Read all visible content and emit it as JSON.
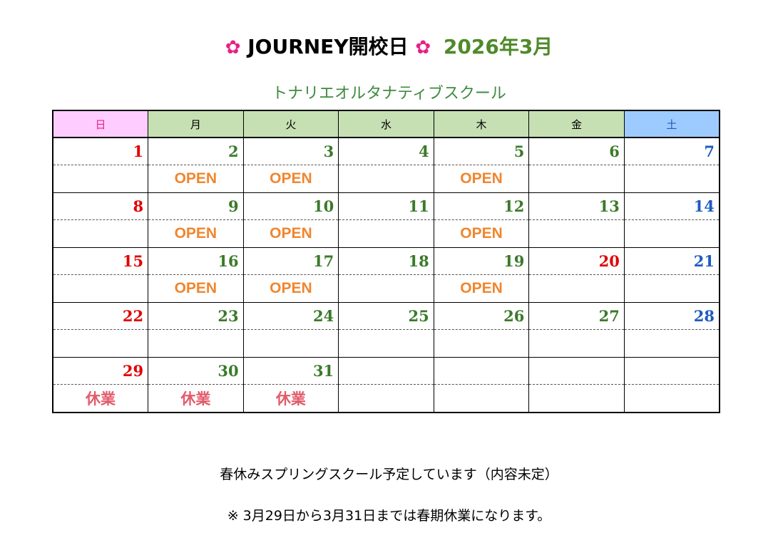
{
  "header": {
    "flower": "✿",
    "name": "JOURNEY開校日",
    "month": "2026年3月"
  },
  "subtitle": "トナリエオルタナティブスクール",
  "weekdays": [
    "日",
    "月",
    "火",
    "水",
    "木",
    "金",
    "土"
  ],
  "colors": {
    "sunday": "#e00000",
    "weekday": "#3b7a2a",
    "saturday": "#1f5bbf",
    "open": "#f0862e",
    "closed": "#e25b6a",
    "flower": "#e8208a"
  },
  "weeks": [
    {
      "days": [
        {
          "n": "1",
          "c": "red"
        },
        {
          "n": "2",
          "c": "green"
        },
        {
          "n": "3",
          "c": "green"
        },
        {
          "n": "4",
          "c": "green"
        },
        {
          "n": "5",
          "c": "green"
        },
        {
          "n": "6",
          "c": "green"
        },
        {
          "n": "7",
          "c": "blue"
        }
      ],
      "events": [
        "",
        "OPEN",
        "OPEN",
        "",
        "OPEN",
        "",
        ""
      ]
    },
    {
      "days": [
        {
          "n": "8",
          "c": "red"
        },
        {
          "n": "9",
          "c": "green"
        },
        {
          "n": "10",
          "c": "green"
        },
        {
          "n": "11",
          "c": "green"
        },
        {
          "n": "12",
          "c": "green"
        },
        {
          "n": "13",
          "c": "green"
        },
        {
          "n": "14",
          "c": "blue"
        }
      ],
      "events": [
        "",
        "OPEN",
        "OPEN",
        "",
        "OPEN",
        "",
        ""
      ]
    },
    {
      "days": [
        {
          "n": "15",
          "c": "red"
        },
        {
          "n": "16",
          "c": "green"
        },
        {
          "n": "17",
          "c": "green"
        },
        {
          "n": "18",
          "c": "green"
        },
        {
          "n": "19",
          "c": "green"
        },
        {
          "n": "20",
          "c": "red"
        },
        {
          "n": "21",
          "c": "blue"
        }
      ],
      "events": [
        "",
        "OPEN",
        "OPEN",
        "",
        "OPEN",
        "",
        ""
      ]
    },
    {
      "days": [
        {
          "n": "22",
          "c": "red"
        },
        {
          "n": "23",
          "c": "green"
        },
        {
          "n": "24",
          "c": "green"
        },
        {
          "n": "25",
          "c": "green"
        },
        {
          "n": "26",
          "c": "green"
        },
        {
          "n": "27",
          "c": "green"
        },
        {
          "n": "28",
          "c": "blue"
        }
      ],
      "events": [
        "",
        "",
        "",
        "",
        "",
        "",
        ""
      ]
    },
    {
      "days": [
        {
          "n": "29",
          "c": "red"
        },
        {
          "n": "30",
          "c": "green"
        },
        {
          "n": "31",
          "c": "green"
        },
        {
          "n": "",
          "c": "green"
        },
        {
          "n": "",
          "c": "green"
        },
        {
          "n": "",
          "c": "green"
        },
        {
          "n": "",
          "c": "blue"
        }
      ],
      "events": [
        "休業",
        "休業",
        "休業",
        "",
        "",
        "",
        ""
      ]
    }
  ],
  "notes": {
    "line1": "春休みスプリングスクール予定しています（内容未定）",
    "line2": "※  3月29日から3月31日までは春期休業になります。"
  }
}
